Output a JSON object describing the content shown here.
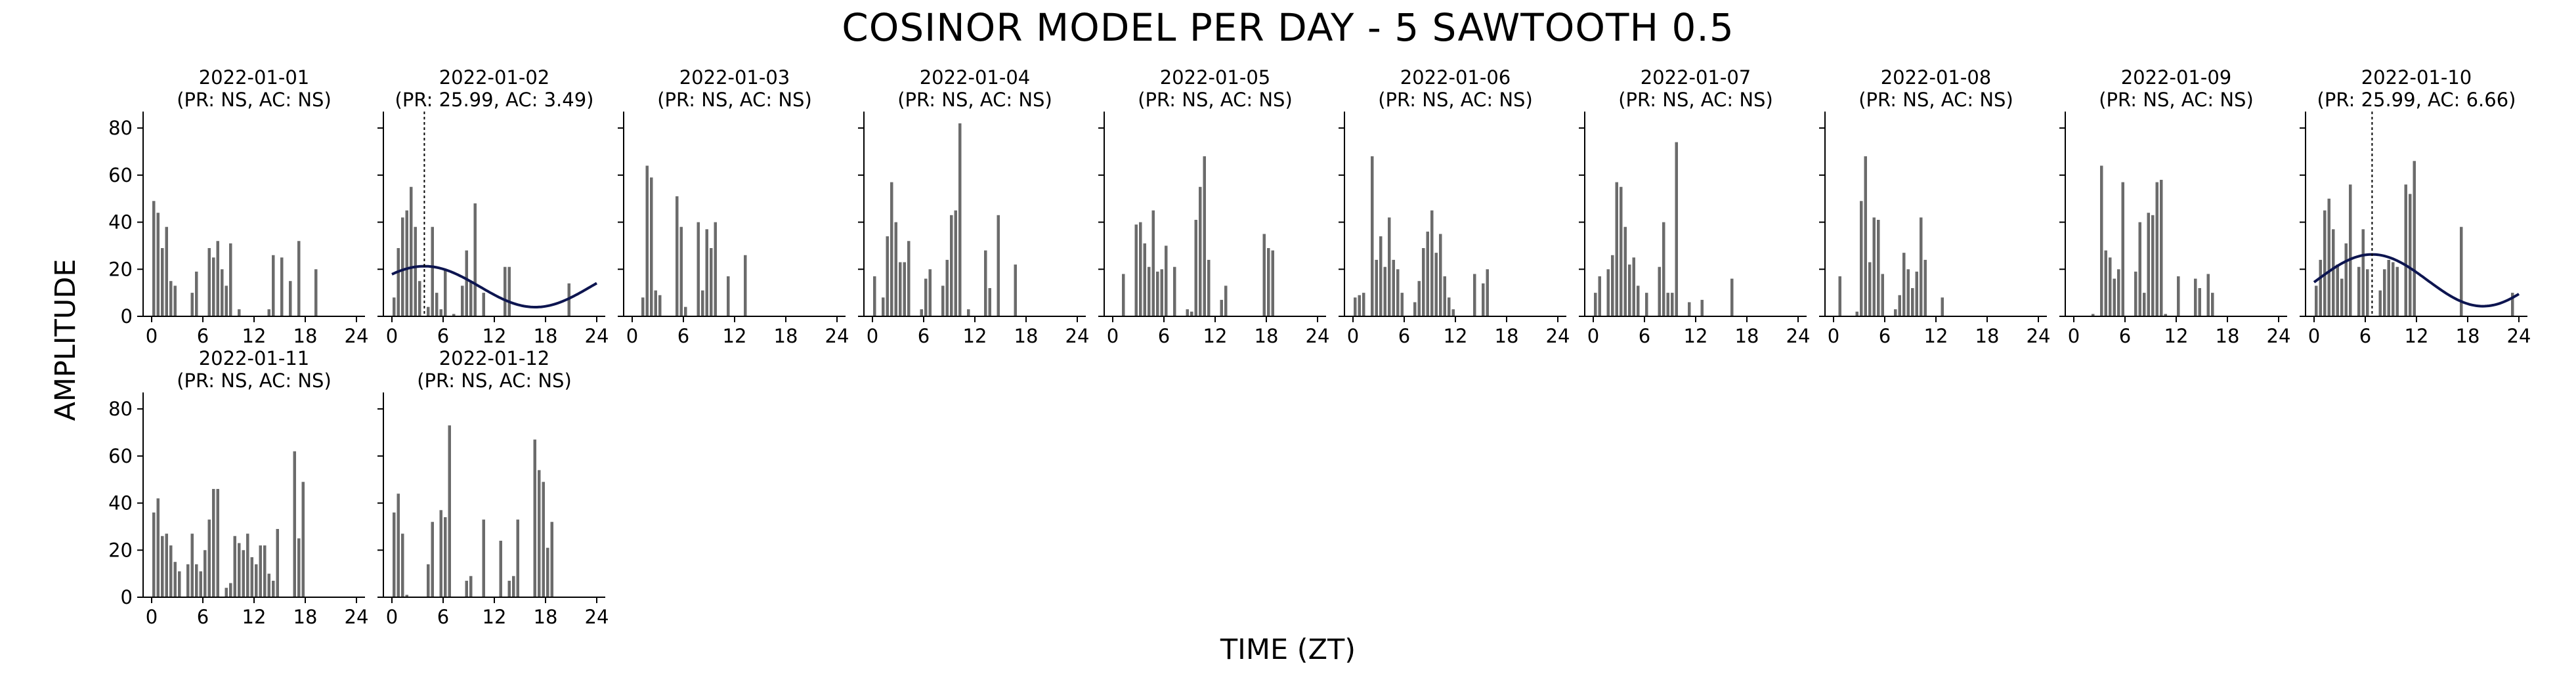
{
  "title": "COSINOR MODEL PER DAY - 5 SAWTOOTH 0.5",
  "colors": {
    "bar": "#6b6b6b",
    "fit": "#0d1550",
    "axis": "#000000"
  },
  "chart_data": {
    "type": "bar",
    "xlabel": "TIME (ZT)",
    "ylabel": "AMPLITUDE",
    "xlim": [
      -1,
      25
    ],
    "ylim": [
      0,
      87
    ],
    "xticks": [
      0,
      6,
      12,
      18,
      24
    ],
    "yticks": [
      0,
      20,
      40,
      60,
      80
    ],
    "bins_x": [
      0,
      0.5,
      1,
      1.5,
      2,
      2.5,
      3,
      3.5,
      4,
      4.5,
      5,
      5.5,
      6,
      6.5,
      7,
      7.5,
      8,
      8.5,
      9,
      9.5,
      10,
      10.5,
      11,
      11.5,
      12,
      12.5,
      13,
      13.5,
      14,
      14.5,
      15,
      15.5,
      16,
      16.5,
      17,
      17.5,
      18,
      18.5,
      19,
      19.5,
      20,
      20.5,
      21,
      21.5,
      22,
      22.5,
      23,
      23.5
    ],
    "panels": [
      {
        "date": "2022-01-01",
        "stats": "(PR: NS, AC: NS)",
        "values": [
          49,
          44,
          29,
          38,
          15,
          13,
          0,
          0,
          0,
          10,
          19,
          0,
          0,
          29,
          25,
          32,
          20,
          13,
          31,
          0,
          3,
          0,
          0,
          0,
          0,
          0,
          0,
          3,
          26,
          0,
          25,
          0,
          15,
          0,
          32,
          0,
          0,
          0,
          20,
          0,
          0,
          0,
          0,
          0,
          0,
          0,
          0,
          0
        ]
      },
      {
        "date": "2022-01-02",
        "stats": "(PR: 25.99, AC: 3.49)",
        "values": [
          8,
          29,
          42,
          45,
          55,
          38,
          15,
          0,
          4,
          38,
          10,
          3,
          20,
          0,
          1,
          0,
          13,
          28,
          15,
          48,
          0,
          10,
          0,
          0,
          0,
          0,
          21,
          21,
          0,
          0,
          0,
          0,
          0,
          0,
          0,
          0,
          0,
          0,
          0,
          0,
          0,
          14,
          0,
          0,
          0,
          0,
          0,
          0
        ],
        "fit": {
          "mesor": 12.6,
          "amplitude": 8.7,
          "acrophase": 3.8,
          "period": 25.99
        }
      },
      {
        "date": "2022-01-03",
        "stats": "(PR: NS, AC: NS)",
        "values": [
          0,
          0,
          8,
          64,
          59,
          11,
          9,
          0,
          0,
          0,
          51,
          38,
          4,
          0,
          0,
          40,
          11,
          37,
          29,
          40,
          0,
          0,
          17,
          0,
          0,
          0,
          26,
          0,
          0,
          0,
          0,
          0,
          0,
          0,
          0,
          0,
          0,
          0,
          0,
          0,
          0,
          0,
          0,
          0,
          0,
          0,
          0,
          0
        ]
      },
      {
        "date": "2022-01-04",
        "stats": "(PR: NS, AC: NS)",
        "values": [
          17,
          0,
          8,
          34,
          57,
          40,
          23,
          23,
          32,
          0,
          0,
          3,
          16,
          20,
          0,
          0,
          13,
          24,
          43,
          45,
          82,
          0,
          3,
          0,
          0,
          0,
          28,
          12,
          0,
          43,
          0,
          0,
          0,
          22,
          0,
          0,
          0,
          0,
          0,
          0,
          0,
          0,
          0,
          0,
          0,
          0,
          0,
          0
        ]
      },
      {
        "date": "2022-01-05",
        "stats": "(PR: NS, AC: NS)",
        "values": [
          0,
          0,
          18,
          0,
          0,
          39,
          40,
          31,
          21,
          45,
          19,
          20,
          30,
          0,
          21,
          0,
          0,
          3,
          2,
          41,
          55,
          68,
          24,
          0,
          0,
          7,
          13,
          0,
          0,
          0,
          0,
          0,
          0,
          0,
          0,
          35,
          29,
          28,
          0,
          0,
          0,
          0,
          0,
          0,
          0,
          0,
          0,
          0
        ]
      },
      {
        "date": "2022-01-06",
        "stats": "(PR: NS, AC: NS)",
        "values": [
          8,
          9,
          10,
          0,
          68,
          24,
          34,
          21,
          42,
          24,
          20,
          10,
          0,
          0,
          6,
          15,
          29,
          36,
          45,
          27,
          35,
          17,
          8,
          3,
          0,
          0,
          0,
          0,
          18,
          0,
          14,
          20,
          0,
          0,
          0,
          0,
          0,
          0,
          0,
          0,
          0,
          0,
          0,
          0,
          0,
          0,
          0,
          0
        ]
      },
      {
        "date": "2022-01-07",
        "stats": "(PR: NS, AC: NS)",
        "values": [
          10,
          17,
          0,
          20,
          26,
          57,
          55,
          38,
          22,
          25,
          13,
          0,
          10,
          0,
          0,
          21,
          40,
          10,
          10,
          74,
          0,
          0,
          6,
          0,
          0,
          7,
          0,
          0,
          0,
          0,
          0,
          0,
          16,
          0,
          0,
          0,
          0,
          0,
          0,
          0,
          0,
          0,
          0,
          0,
          0,
          0,
          0,
          0
        ]
      },
      {
        "date": "2022-01-08",
        "stats": "(PR: NS, AC: NS)",
        "values": [
          0,
          17,
          0,
          0,
          0,
          2,
          49,
          68,
          23,
          42,
          41,
          18,
          0,
          0,
          3,
          9,
          27,
          20,
          12,
          19,
          42,
          24,
          0,
          0,
          0,
          8,
          0,
          0,
          0,
          0,
          0,
          0,
          0,
          0,
          0,
          0,
          0,
          0,
          0,
          0,
          0,
          0,
          0,
          0,
          0,
          0,
          0,
          0
        ]
      },
      {
        "date": "2022-01-09",
        "stats": "(PR: NS, AC: NS)",
        "values": [
          0,
          0,
          0,
          0,
          1,
          0,
          64,
          28,
          25,
          16,
          20,
          57,
          0,
          0,
          19,
          40,
          10,
          44,
          43,
          57,
          58,
          1,
          0,
          0,
          17,
          0,
          0,
          0,
          16,
          12,
          0,
          18,
          10,
          0,
          0,
          0,
          0,
          0,
          0,
          0,
          0,
          0,
          0,
          0,
          0,
          0,
          0,
          0
        ]
      },
      {
        "date": "2022-01-10",
        "stats": "(PR: 25.99, AC: 6.66)",
        "values": [
          13,
          24,
          45,
          50,
          37,
          22,
          16,
          31,
          56,
          0,
          21,
          37,
          20,
          0,
          0,
          11,
          20,
          24,
          23,
          21,
          0,
          56,
          52,
          66,
          0,
          0,
          0,
          0,
          0,
          0,
          0,
          0,
          0,
          0,
          38,
          0,
          0,
          0,
          0,
          0,
          0,
          0,
          0,
          0,
          0,
          0,
          10,
          0
        ],
        "fit": {
          "mesor": 15.3,
          "amplitude": 11.0,
          "acrophase": 6.8,
          "period": 25.99
        }
      },
      {
        "date": "2022-01-11",
        "stats": "(PR: NS, AC: NS)",
        "values": [
          36,
          42,
          26,
          27,
          22,
          15,
          11,
          0,
          14,
          27,
          14,
          11,
          20,
          33,
          46,
          46,
          0,
          4,
          6,
          26,
          23,
          20,
          27,
          17,
          14,
          22,
          22,
          10,
          7,
          29,
          0,
          0,
          0,
          62,
          25,
          49,
          0,
          0,
          0,
          0,
          0,
          0,
          0,
          0,
          0,
          0,
          0,
          0
        ]
      },
      {
        "date": "2022-01-12",
        "stats": "(PR: NS, AC: NS)",
        "values": [
          36,
          44,
          27,
          1,
          0,
          0,
          0,
          0,
          14,
          32,
          0,
          37,
          34,
          73,
          0,
          0,
          0,
          7,
          9,
          0,
          0,
          33,
          0,
          0,
          0,
          24,
          0,
          7,
          9,
          33,
          0,
          0,
          0,
          67,
          54,
          49,
          21,
          32,
          0,
          0,
          0,
          0,
          0,
          0,
          0,
          0,
          0,
          0
        ]
      }
    ]
  }
}
